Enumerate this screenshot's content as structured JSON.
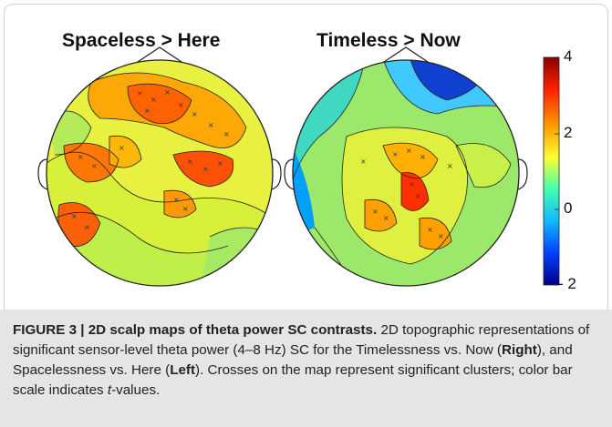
{
  "figure": {
    "left_map_title": "Spaceless > Here",
    "right_map_title": "Timeless > Now",
    "colorbar": {
      "ticks": [
        "4",
        "2",
        "0",
        "- 2"
      ],
      "colors": [
        "#8b0000",
        "#ff3000",
        "#ffb000",
        "#ffff40",
        "#50ffb0",
        "#20c0ff",
        "#0050ff",
        "#00008b"
      ]
    }
  },
  "caption": {
    "label": "FIGURE 3 | 2D scalp maps of theta power SC contrasts.",
    "text_1": " 2D topographic representations of significant sensor-level theta power (4–8 Hz) SC for the Timelessness vs. Now (",
    "right_word": "Right",
    "text_2": "), and Spacelessness vs. Here (",
    "left_word": "Left",
    "text_3": "). Crosses on the map represent significant clusters; color bar scale indicates ",
    "t_italic": "t",
    "text_4": "-values."
  }
}
